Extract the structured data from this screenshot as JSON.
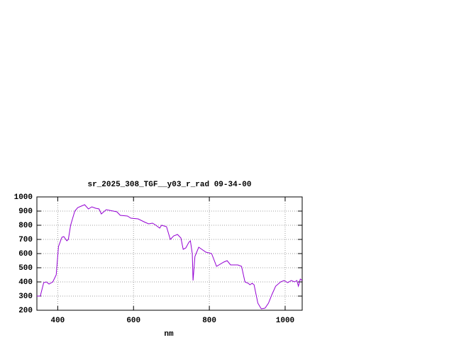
{
  "chart_data": {
    "type": "line",
    "title": "sr_2025_308_TGF__y03_r_rad 09-34-00",
    "x_label": "nm",
    "x": [
      345,
      354,
      363,
      370,
      377,
      387,
      396,
      402,
      411,
      416,
      424,
      428,
      434,
      445,
      453,
      462,
      471,
      481,
      490,
      500,
      509,
      515,
      528,
      537,
      556,
      565,
      584,
      593,
      612,
      631,
      640,
      650,
      659,
      669,
      674,
      687,
      697,
      706,
      716,
      725,
      731,
      738,
      746,
      750,
      755,
      757,
      762,
      772,
      791,
      806,
      819,
      838,
      847,
      856,
      875,
      885,
      894,
      903,
      907,
      913,
      918,
      928,
      937,
      947,
      956,
      965,
      975,
      988,
      997,
      1007,
      1016,
      1025,
      1031,
      1035,
      1040,
      1045
    ],
    "series": [
      {
        "color": "#9400d3",
        "values": [
          300,
          300,
          395,
          400,
          385,
          400,
          450,
          650,
          715,
          720,
          690,
          700,
          800,
          900,
          925,
          935,
          945,
          915,
          930,
          920,
          915,
          880,
          910,
          905,
          895,
          870,
          865,
          850,
          845,
          820,
          810,
          815,
          800,
          780,
          800,
          790,
          700,
          725,
          735,
          710,
          630,
          640,
          680,
          690,
          600,
          410,
          580,
          645,
          610,
          600,
          510,
          540,
          550,
          520,
          520,
          510,
          400,
          390,
          380,
          390,
          380,
          250,
          210,
          215,
          250,
          310,
          370,
          400,
          410,
          395,
          410,
          400,
          410,
          370,
          420,
          410
        ]
      }
    ],
    "xlim": [
      345,
      1045
    ],
    "ylim": [
      200,
      1000
    ],
    "xticks": [
      400,
      600,
      800,
      1000
    ],
    "yticks": [
      200,
      300,
      400,
      500,
      600,
      700,
      800,
      900,
      1000
    ],
    "grid": true
  }
}
